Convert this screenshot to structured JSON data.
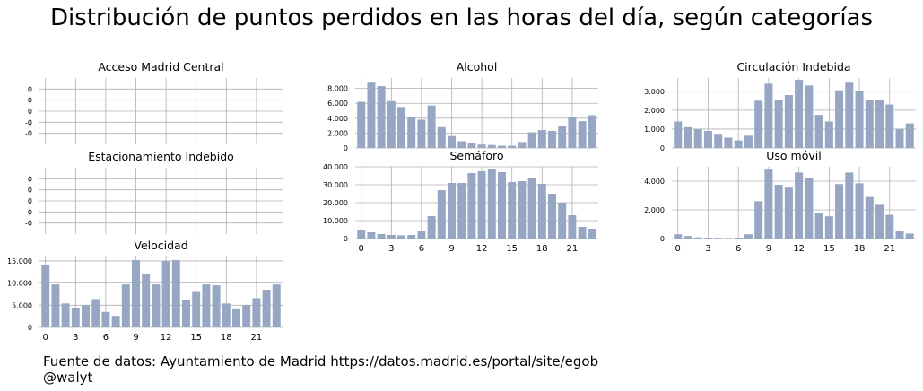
{
  "title": "Distribución de puntos perdidos en las horas del día, según categorías",
  "footer": {
    "source": "Fuente de datos: Ayuntamiento de Madrid https://datos.madrid.es/portal/site/egob",
    "author": "@walyt"
  },
  "colors": {
    "bar": "#97a6c3",
    "grid": "#b0b0b0"
  },
  "chart_data": [
    {
      "type": "bar",
      "title": "Acceso Madrid Central",
      "x": [
        0,
        1,
        2,
        3,
        4,
        5,
        6,
        7,
        8,
        9,
        10,
        11,
        12,
        13,
        14,
        15,
        16,
        17,
        18,
        19,
        20,
        21,
        22,
        23
      ],
      "values": [
        0,
        0,
        0,
        0,
        0,
        0,
        0,
        0,
        0,
        0,
        0,
        0,
        0,
        0,
        0,
        0,
        0,
        0,
        0,
        0,
        0,
        0,
        0,
        0
      ],
      "ylim": [
        -0.06,
        0.06
      ],
      "yticks": [
        0.04,
        0.02,
        0,
        -0.02,
        -0.04
      ],
      "ytick_labels": [
        "0",
        "0",
        "0",
        "-0",
        "-0"
      ],
      "xticks": [],
      "grid": true
    },
    {
      "type": "bar",
      "title": "Estacionamiento Indebido",
      "x": [
        0,
        1,
        2,
        3,
        4,
        5,
        6,
        7,
        8,
        9,
        10,
        11,
        12,
        13,
        14,
        15,
        16,
        17,
        18,
        19,
        20,
        21,
        22,
        23
      ],
      "values": [
        0,
        0,
        0,
        0,
        0,
        0,
        0,
        0,
        0,
        0,
        0,
        0,
        0,
        0,
        0,
        0,
        0,
        0,
        0,
        0,
        0,
        0,
        0,
        0
      ],
      "ylim": [
        -0.06,
        0.06
      ],
      "yticks": [
        0.04,
        0.02,
        0,
        -0.02,
        -0.04
      ],
      "ytick_labels": [
        "0",
        "0",
        "0",
        "-0",
        "-0"
      ],
      "xticks": [],
      "grid": true
    },
    {
      "type": "bar",
      "title": "Velocidad",
      "x": [
        0,
        1,
        2,
        3,
        4,
        5,
        6,
        7,
        8,
        9,
        10,
        11,
        12,
        13,
        14,
        15,
        16,
        17,
        18,
        19,
        20,
        21,
        22,
        23
      ],
      "values": [
        14200,
        9700,
        5400,
        4300,
        5000,
        6400,
        3500,
        2600,
        9700,
        15200,
        12100,
        9700,
        15000,
        15200,
        6200,
        8000,
        9700,
        9500,
        5400,
        4100,
        5000,
        6600,
        8500,
        9700
      ],
      "ylim": [
        0,
        16000
      ],
      "yticks": [
        0,
        5000,
        10000,
        15000
      ],
      "ytick_labels": [
        "0",
        "5.000",
        "10.000",
        "15.000"
      ],
      "xticks": [
        0,
        3,
        6,
        9,
        12,
        15,
        18,
        21
      ],
      "grid": true
    },
    {
      "type": "bar",
      "title": "Alcohol",
      "x": [
        0,
        1,
        2,
        3,
        4,
        5,
        6,
        7,
        8,
        9,
        10,
        11,
        12,
        13,
        14,
        15,
        16,
        17,
        18,
        19,
        20,
        21,
        22,
        23
      ],
      "values": [
        6200,
        8900,
        8300,
        6300,
        5500,
        4200,
        3800,
        5700,
        2800,
        1600,
        900,
        600,
        450,
        400,
        300,
        300,
        800,
        2100,
        2400,
        2300,
        2900,
        4100,
        3600,
        4400
      ],
      "ylim": [
        0,
        9400
      ],
      "yticks": [
        0,
        2000,
        4000,
        6000,
        8000
      ],
      "ytick_labels": [
        "0",
        "2.000",
        "4.000",
        "6.000",
        "8.000"
      ],
      "xticks": [],
      "grid": true
    },
    {
      "type": "bar",
      "title": "Semáforo",
      "x": [
        0,
        1,
        2,
        3,
        4,
        5,
        6,
        7,
        8,
        9,
        10,
        11,
        12,
        13,
        14,
        15,
        16,
        17,
        18,
        19,
        20,
        21,
        22,
        23
      ],
      "values": [
        4500,
        3500,
        2500,
        2000,
        1800,
        2000,
        4000,
        12500,
        27000,
        31000,
        31000,
        36500,
        37500,
        38500,
        37000,
        31500,
        32000,
        34000,
        30500,
        25000,
        20000,
        13000,
        6500,
        5500
      ],
      "ylim": [
        0,
        40000
      ],
      "yticks": [
        0,
        10000,
        20000,
        30000,
        40000
      ],
      "ytick_labels": [
        "0",
        "10.000",
        "20.000",
        "30.000",
        "40.000"
      ],
      "xticks": [
        0,
        3,
        6,
        9,
        12,
        15,
        18,
        21
      ],
      "grid": true
    },
    {
      "type": "bar",
      "title": "Circulación Indebida",
      "x": [
        0,
        1,
        2,
        3,
        4,
        5,
        6,
        7,
        8,
        9,
        10,
        11,
        12,
        13,
        14,
        15,
        16,
        17,
        18,
        19,
        20,
        21,
        22,
        23
      ],
      "values": [
        1400,
        1100,
        1000,
        900,
        750,
        550,
        400,
        650,
        2500,
        3400,
        2550,
        2800,
        3600,
        3300,
        1750,
        1400,
        3050,
        3500,
        3000,
        2550,
        2550,
        2300,
        1000,
        1300
      ],
      "ylim": [
        0,
        3700
      ],
      "yticks": [
        0,
        1000,
        2000,
        3000
      ],
      "ytick_labels": [
        "0",
        "1.000",
        "2.000",
        "3.000"
      ],
      "xticks": [],
      "grid": true
    },
    {
      "type": "bar",
      "title": "Uso móvil",
      "x": [
        0,
        1,
        2,
        3,
        4,
        5,
        6,
        7,
        8,
        9,
        10,
        11,
        12,
        13,
        14,
        15,
        16,
        17,
        18,
        19,
        20,
        21,
        22,
        23
      ],
      "values": [
        300,
        180,
        80,
        60,
        50,
        40,
        60,
        300,
        2600,
        4800,
        3750,
        3550,
        4600,
        4200,
        1750,
        1550,
        3800,
        4600,
        3850,
        2900,
        2350,
        1650,
        500,
        350
      ],
      "ylim": [
        0,
        5000
      ],
      "yticks": [
        0,
        2000,
        4000
      ],
      "ytick_labels": [
        "0",
        "2.000",
        "4.000"
      ],
      "xticks": [
        0,
        3,
        6,
        9,
        12,
        15,
        18,
        21
      ],
      "grid": true
    }
  ]
}
